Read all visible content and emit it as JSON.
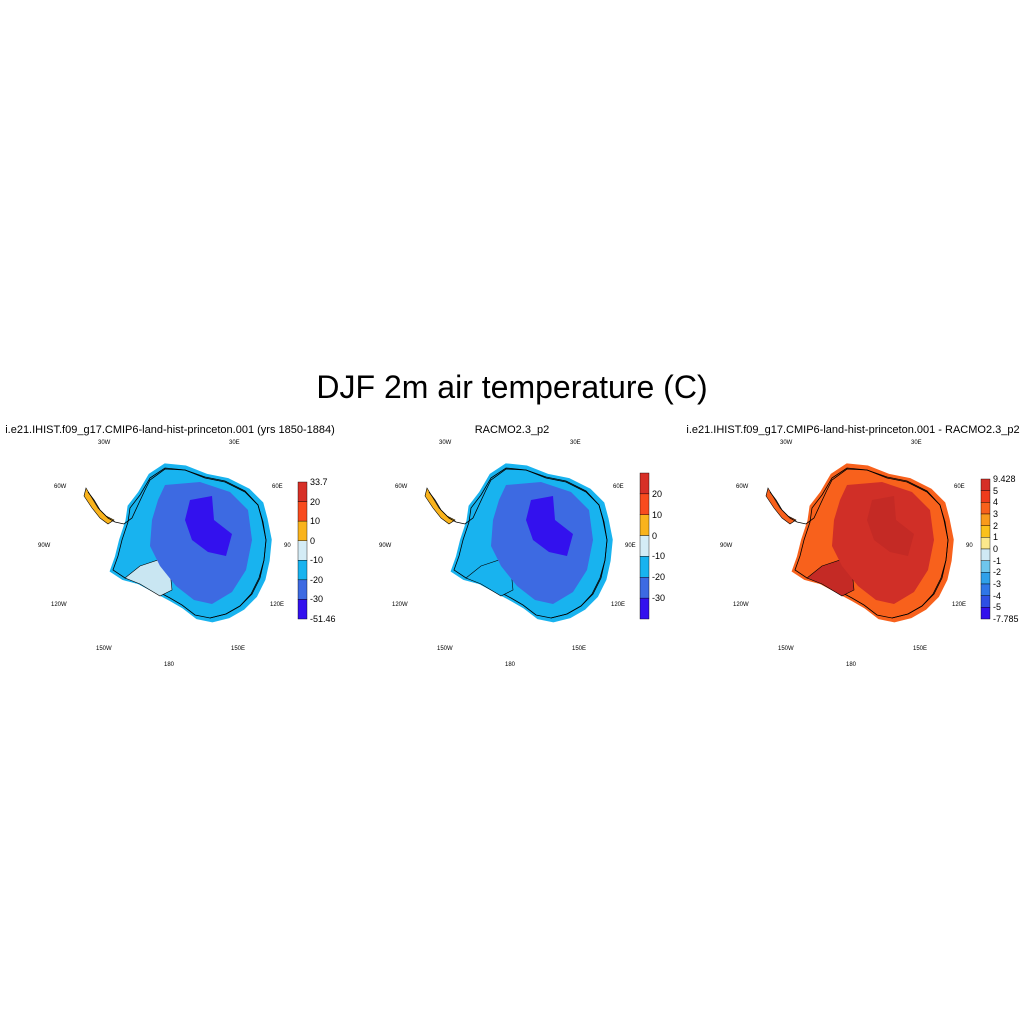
{
  "title": "DJF 2m air temperature (C)",
  "panels": [
    {
      "title": "i.e21.IHIST.f09_g17.CMIP6-land-hist-princeton.001 (yrs 1850-1884)",
      "lon_labels": [
        "30W",
        "30E",
        "60W",
        "60E",
        "90W",
        "90",
        "120W",
        "120E",
        "150W",
        "150E",
        "180"
      ],
      "colorbar": {
        "labels": [
          "33.7",
          "20",
          "10",
          "0",
          "-10",
          "-20",
          "-30",
          "-51.46"
        ],
        "colors": [
          "#d73027",
          "#f84b1e",
          "#f9b31c",
          "#d4ecf6",
          "#18b3ef",
          "#3d6ae2",
          "#3311ee"
        ]
      },
      "field_colors": {
        "interior": "#3d6ae2",
        "core": "#3311ee",
        "coast": "#18b3ef",
        "shelf": "#c9e6f2"
      }
    },
    {
      "title": "RACMO2.3_p2",
      "lon_labels": [
        "30W",
        "30E",
        "60W",
        "60E",
        "90W",
        "90E",
        "120W",
        "120E",
        "150W",
        "150E",
        "180"
      ],
      "colorbar": {
        "labels": [
          "20",
          "10",
          "0",
          "-10",
          "-20",
          "-30"
        ],
        "colors": [
          "#d73027",
          "#f84b1e",
          "#f9b31c",
          "#d4ecf6",
          "#18b3ef",
          "#3d6ae2",
          "#3311ee"
        ]
      },
      "field_colors": {
        "interior": "#3d6ae2",
        "core": "#3311ee",
        "coast": "#18b3ef",
        "shelf": "#18b3ef"
      }
    },
    {
      "title": "i.e21.IHIST.f09_g17.CMIP6-land-hist-princeton.001 - RACMO2.3_p2",
      "lon_labels": [
        "30W",
        "30E",
        "60W",
        "60E",
        "90W",
        "90",
        "120W",
        "120E",
        "150W",
        "150E",
        "180"
      ],
      "colorbar": {
        "labels": [
          "9.428",
          "5",
          "4",
          "3",
          "2",
          "1",
          "0",
          "-1",
          "-2",
          "-3",
          "-4",
          "-5",
          "-7.785"
        ],
        "colors": [
          "#d62f27",
          "#ee3c1c",
          "#f8611c",
          "#f99a1c",
          "#fbc11c",
          "#fbe88c",
          "#cfe9f4",
          "#6fc6ec",
          "#2fa0ea",
          "#2f76e7",
          "#2e4fe4",
          "#3211ec"
        ]
      },
      "field_colors": {
        "interior": "#d02f27",
        "core": "#c42a25",
        "coast": "#f8611c",
        "shelf": "#c42a25"
      }
    }
  ]
}
